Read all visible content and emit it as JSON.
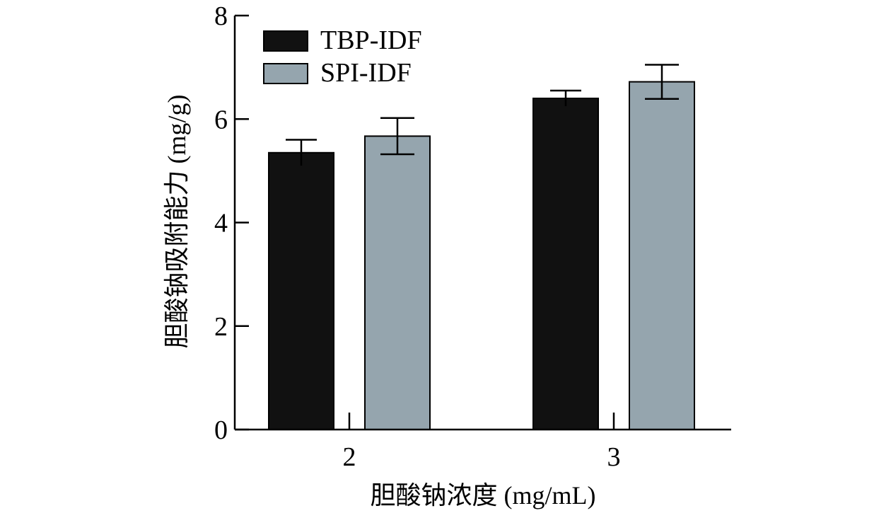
{
  "chart_data": {
    "type": "bar",
    "categories": [
      "2",
      "3"
    ],
    "series": [
      {
        "name": "TBP-IDF",
        "values": [
          5.35,
          6.4
        ],
        "errors": [
          0.25,
          0.15
        ],
        "color": "#111111"
      },
      {
        "name": "SPI-IDF",
        "values": [
          5.67,
          6.72
        ],
        "errors": [
          0.35,
          0.33
        ],
        "color": "#95a5ae"
      }
    ],
    "xlabel": "胆酸钠浓度 (mg/mL)",
    "ylabel": "胆酸钠吸附能力 (mg/g)",
    "ylim": [
      0,
      8
    ],
    "yticks": [
      "0",
      "2",
      "4",
      "6",
      "8"
    ],
    "grid": false,
    "legend_position": "top-left"
  }
}
